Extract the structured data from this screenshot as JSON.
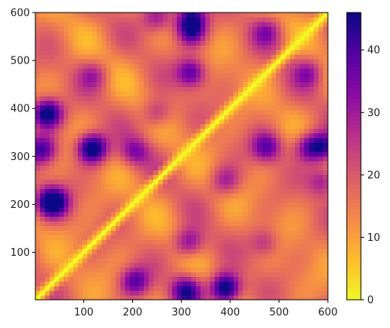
{
  "chart_data": {
    "type": "heatmap",
    "description_kind": "distance-matrix",
    "x": {
      "range": [
        1,
        600
      ],
      "ticks": [
        100,
        200,
        300,
        400,
        500,
        600
      ]
    },
    "y": {
      "range": [
        1,
        600
      ],
      "ticks": [
        100,
        200,
        300,
        400,
        500,
        600
      ]
    },
    "colormap": "plasma_r",
    "value_range": [
      0,
      46
    ],
    "colorbar": {
      "ticks": [
        0,
        10,
        20,
        30,
        40
      ]
    },
    "diagonal_value": 0,
    "hotspots": [
      {
        "x": 15,
        "y": 315,
        "value": 40
      },
      {
        "x": 20,
        "y": 390,
        "value": 34
      },
      {
        "x": 30,
        "y": 205,
        "value": 36
      },
      {
        "x": 115,
        "y": 320,
        "value": 36
      },
      {
        "x": 205,
        "y": 40,
        "value": 38
      },
      {
        "x": 205,
        "y": 310,
        "value": 32
      },
      {
        "x": 310,
        "y": 20,
        "value": 42
      },
      {
        "x": 315,
        "y": 120,
        "value": 36
      },
      {
        "x": 320,
        "y": 475,
        "value": 40
      },
      {
        "x": 320,
        "y": 560,
        "value": 38
      },
      {
        "x": 320,
        "y": 590,
        "value": 42
      },
      {
        "x": 390,
        "y": 30,
        "value": 36
      },
      {
        "x": 475,
        "y": 320,
        "value": 38
      },
      {
        "x": 560,
        "y": 320,
        "value": 36
      },
      {
        "x": 590,
        "y": 320,
        "value": 40
      },
      {
        "x": 40,
        "y": 205,
        "value": 36
      },
      {
        "x": 30,
        "y": 390,
        "value": 34
      },
      {
        "x": 390,
        "y": 20,
        "value": 36
      },
      {
        "x": 120,
        "y": 315,
        "value": 34
      },
      {
        "x": 475,
        "y": 560,
        "value": 30
      },
      {
        "x": 560,
        "y": 475,
        "value": 30
      },
      {
        "x": 250,
        "y": 390,
        "value": 30
      },
      {
        "x": 390,
        "y": 250,
        "value": 30
      },
      {
        "x": 590,
        "y": 250,
        "value": 32
      },
      {
        "x": 250,
        "y": 590,
        "value": 32
      },
      {
        "x": 120,
        "y": 470,
        "value": 28
      },
      {
        "x": 470,
        "y": 120,
        "value": 28
      }
    ]
  }
}
